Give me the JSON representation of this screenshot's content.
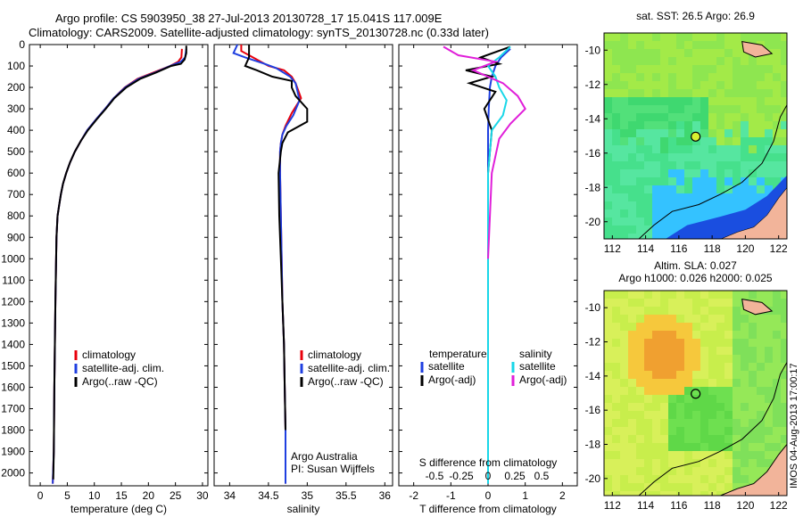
{
  "header": {
    "line1": "Argo profile: CS 5903950_38 27-Jul-2013 20130728_17 15.041S 117.009E",
    "line2": "Climatology: CARS2009. Satellite-adjusted climatology: synTS_20130728.nc (0.33d later)"
  },
  "stamp": "IMOS 04-Aug-2013 17:00:17",
  "colors": {
    "clim": "#e8000b",
    "sat": "#1f3fe0",
    "argo": "#000000",
    "sat_s": "#19d7e8",
    "argo_s": "#e01fd9",
    "land": "#f2b49a"
  },
  "chart_data": [
    {
      "type": "line",
      "panel": "temperature",
      "xlabel": "temperature (deg C)",
      "ylabel": "",
      "xlim": [
        -2,
        31
      ],
      "ylim": [
        2060,
        0
      ],
      "xticks": [
        0,
        5,
        10,
        15,
        20,
        25,
        30
      ],
      "yticks": [
        0,
        100,
        200,
        300,
        400,
        500,
        600,
        700,
        800,
        900,
        1000,
        1100,
        1200,
        1300,
        1400,
        1500,
        1600,
        1700,
        1800,
        1900,
        2000
      ],
      "legend": [
        "climatology",
        "satellite-adj. clim.",
        "Argo(..raw -QC)"
      ],
      "series": [
        {
          "name": "climatology",
          "color": "clim",
          "x": [
            26.2,
            26.1,
            25.5,
            24.0,
            21.0,
            18.0,
            15.6,
            13.6,
            12.0,
            10.3,
            8.7,
            7.5,
            6.4,
            5.5,
            4.8,
            4.2,
            3.8,
            3.5,
            3.2,
            3.0,
            2.8,
            2.6,
            2.5,
            2.3
          ],
          "y": [
            20,
            60,
            80,
            100,
            130,
            160,
            200,
            250,
            300,
            350,
            400,
            450,
            500,
            550,
            600,
            650,
            700,
            750,
            800,
            900,
            1200,
            1600,
            1900,
            2050
          ]
        },
        {
          "name": "satellite-adj. clim.",
          "color": "sat",
          "x": [
            27.0,
            26.8,
            26.0,
            24.0,
            21.3,
            18.2,
            15.7,
            13.6,
            12.0,
            10.3,
            8.7,
            7.5,
            6.4,
            5.5,
            4.8,
            4.2,
            3.8,
            3.5,
            3.2,
            3.0,
            2.8,
            2.6,
            2.5,
            2.3
          ],
          "y": [
            20,
            60,
            80,
            100,
            130,
            160,
            200,
            250,
            300,
            350,
            400,
            450,
            500,
            550,
            600,
            650,
            700,
            750,
            800,
            900,
            1200,
            1600,
            1900,
            2050
          ]
        },
        {
          "name": "Argo(..raw -QC)",
          "color": "argo",
          "x": [
            27.0,
            27.0,
            26.7,
            26.0,
            24.2,
            21.5,
            18.5,
            15.9,
            13.7,
            12.1,
            10.4,
            8.8,
            7.5,
            6.4,
            5.5,
            4.8,
            4.2,
            3.8,
            3.5,
            3.2,
            3.0,
            2.8,
            2.6,
            2.5,
            2.4
          ],
          "y": [
            5,
            40,
            70,
            90,
            100,
            130,
            160,
            200,
            250,
            300,
            350,
            400,
            450,
            500,
            550,
            600,
            650,
            700,
            750,
            800,
            900,
            1200,
            1600,
            1900,
            2030
          ]
        }
      ]
    },
    {
      "type": "line",
      "panel": "salinity",
      "xlabel": "salinity",
      "xlim": [
        33.8,
        36.1
      ],
      "ylim": [
        2060,
        0
      ],
      "xticks": [
        34,
        34.5,
        35,
        35.5,
        36
      ],
      "legend": [
        "climatology",
        "satellite-adj. clim.",
        "Argo(..raw -QC)"
      ],
      "annotation": [
        "Argo Australia",
        "PI: Susan Wijffels"
      ],
      "series": [
        {
          "name": "climatology",
          "color": "clim",
          "x": [
            34.15,
            34.15,
            34.3,
            34.5,
            34.7,
            34.8,
            34.85,
            34.92,
            34.8,
            34.72,
            34.68,
            34.66,
            34.65,
            34.65,
            34.66,
            34.67,
            34.68,
            34.7,
            34.71,
            34.72,
            34.72
          ],
          "y": [
            0,
            30,
            60,
            100,
            120,
            150,
            180,
            250,
            320,
            380,
            420,
            460,
            500,
            600,
            800,
            1000,
            1200,
            1400,
            1600,
            1800,
            2050
          ]
        },
        {
          "name": "satellite-adj. clim.",
          "color": "sat",
          "x": [
            34.1,
            34.05,
            34.2,
            34.45,
            34.6,
            34.78,
            34.85,
            34.9,
            34.82,
            34.73,
            34.68,
            34.66,
            34.65,
            34.65,
            34.66,
            34.67,
            34.68,
            34.7,
            34.71,
            34.72,
            34.72
          ],
          "y": [
            0,
            40,
            60,
            90,
            110,
            150,
            180,
            260,
            330,
            380,
            420,
            460,
            500,
            600,
            800,
            1000,
            1200,
            1400,
            1600,
            1800,
            2050
          ]
        },
        {
          "name": "Argo(..raw -QC)",
          "color": "argo",
          "x": [
            34.25,
            34.25,
            34.2,
            34.35,
            34.55,
            34.8,
            34.8,
            34.85,
            35.0,
            35.0,
            34.75,
            34.68,
            34.66,
            34.63,
            34.64,
            34.66,
            34.68,
            34.7,
            34.71,
            34.72
          ],
          "y": [
            0,
            60,
            100,
            120,
            150,
            170,
            200,
            240,
            300,
            360,
            410,
            460,
            500,
            600,
            800,
            1000,
            1200,
            1400,
            1600,
            1800
          ]
        }
      ]
    },
    {
      "type": "line",
      "panel": "difference",
      "xlabel": "T difference from climatology",
      "xlabel_top": "S difference from climatology",
      "xlim": [
        -2.4,
        2.4
      ],
      "ylim": [
        2060,
        0
      ],
      "xticks": [
        -2,
        -1,
        0,
        1,
        2
      ],
      "xticks_s": [
        "-0.5",
        "-0.25",
        "0",
        "0.25",
        "0.5"
      ],
      "legend": [
        "temperature",
        "satellite",
        "Argo(-adj)",
        "salinity",
        "satellite",
        "Argo(-adj)"
      ],
      "series": [
        {
          "name": "satellite",
          "color": "sat",
          "x": [
            0.6,
            0.35,
            0.2,
            0.1,
            0.05,
            0.02,
            0.0,
            0.0,
            0.0,
            0.0,
            0.0
          ],
          "y": [
            20,
            60,
            100,
            150,
            200,
            300,
            400,
            600,
            1000,
            1500,
            2050
          ]
        },
        {
          "name": "Argo(-adj)",
          "color": "argo",
          "x": [
            0.6,
            -0.2,
            0.3,
            -0.6,
            0.1,
            -0.5,
            0.2,
            -0.1,
            0.1,
            0.0,
            0.0,
            0.0,
            0.0
          ],
          "y": [
            10,
            60,
            90,
            120,
            150,
            180,
            220,
            300,
            400,
            600,
            1000,
            1500,
            1900
          ]
        },
        {
          "name": "satellite",
          "color": "sat_s",
          "x": [
            0.6,
            0.3,
            0.0,
            0.2,
            0.3,
            0.5,
            0.4,
            0.1,
            0.0,
            0.0,
            0.0
          ],
          "y": [
            10,
            60,
            100,
            150,
            200,
            260,
            330,
            400,
            600,
            1200,
            2050
          ]
        },
        {
          "name": "Argo(-adj)",
          "color": "argo_s",
          "x": [
            -1.2,
            -0.8,
            0.2,
            -0.4,
            0.4,
            0.8,
            1.0,
            0.6,
            0.3,
            0.1,
            0.0
          ],
          "y": [
            10,
            50,
            80,
            120,
            180,
            240,
            300,
            370,
            440,
            600,
            1000
          ]
        }
      ]
    },
    {
      "type": "heatmap",
      "panel": "sst-map",
      "title": "sat. SST: 26.5 Argo: 26.9",
      "xlim": [
        111.5,
        122.5
      ],
      "ylim": [
        -21,
        -9
      ],
      "xticks": [
        112,
        114,
        116,
        118,
        120,
        122
      ],
      "yticks": [
        -10,
        -12,
        -14,
        -16,
        -18,
        -20
      ],
      "marker": [
        117.009,
        -15.041
      ]
    },
    {
      "type": "heatmap",
      "panel": "sla-map",
      "title": [
        "Altim. SLA: 0.027",
        "Argo h1000: 0.026 h2000: 0.025"
      ],
      "xlim": [
        111.5,
        122.5
      ],
      "ylim": [
        -21,
        -9
      ],
      "xticks": [
        112,
        114,
        116,
        118,
        120,
        122
      ],
      "yticks": [
        -10,
        -12,
        -14,
        -16,
        -18,
        -20
      ],
      "marker": [
        117.009,
        -15.041
      ]
    }
  ]
}
